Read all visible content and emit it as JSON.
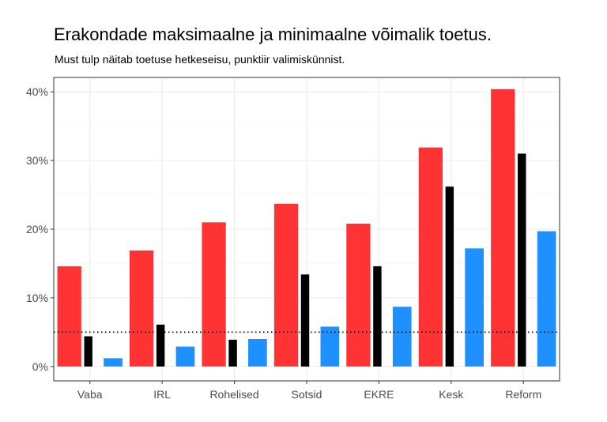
{
  "chart_data": {
    "type": "bar",
    "title": "Erakondade maksimaalne ja minimaalne võimalik toetus.",
    "subtitle": "Must tulp näitab toetuse hetkeseisu, punktiir valimiskünnist.",
    "xlabel": "",
    "ylabel": "",
    "ylim": [
      -2.1,
      42.1
    ],
    "yticks": [
      0,
      10,
      20,
      30,
      40
    ],
    "ytick_labels": [
      "0%",
      "10%",
      "20%",
      "30%",
      "40%"
    ],
    "categories": [
      "Vaba",
      "IRL",
      "Rohelised",
      "Sotsid",
      "EKRE",
      "Kesk",
      "Reform"
    ],
    "series": [
      {
        "name": "maksimaalne",
        "color": "#ff3333",
        "values": [
          14.6,
          16.9,
          21.0,
          23.7,
          20.8,
          31.9,
          40.4
        ]
      },
      {
        "name": "hetkeseis",
        "color": "#000000",
        "values": [
          4.4,
          6.1,
          3.9,
          13.4,
          14.6,
          26.2,
          31.0
        ]
      },
      {
        "name": "minimaalne",
        "color": "#1e90ff",
        "values": [
          1.2,
          2.9,
          4.0,
          5.8,
          8.7,
          17.2,
          19.7
        ]
      }
    ],
    "threshold": 5,
    "grid": true,
    "legend": "none"
  }
}
